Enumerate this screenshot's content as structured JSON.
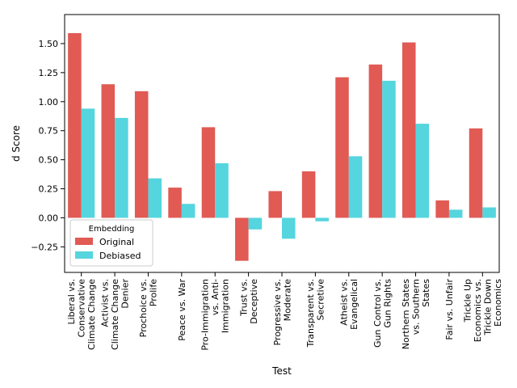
{
  "chart_data": {
    "type": "bar",
    "title": "",
    "xlabel": "Test",
    "ylabel": "d Score",
    "ylim": [
      -0.47,
      1.75
    ],
    "yticks": [
      -0.25,
      0.0,
      0.25,
      0.5,
      0.75,
      1.0,
      1.25,
      1.5
    ],
    "ytick_labels": [
      "−0.25",
      "0.00",
      "0.25",
      "0.50",
      "0.75",
      "1.00",
      "1.25",
      "1.50"
    ],
    "categories": [
      [
        "Liberal vs.",
        "Conservative",
        "Climate Change"
      ],
      [
        "Activist vs.",
        "Climate Change",
        "Denier"
      ],
      [
        "Prochoice vs.",
        "Prolife"
      ],
      [
        "Peace vs. War"
      ],
      [
        "Pro-Immigration",
        "vs. Anti-",
        "Immigration"
      ],
      [
        "Trust vs.",
        "Deceptive"
      ],
      [
        "Progressive vs.",
        "Moderate"
      ],
      [
        "Transparent vs.",
        "Secretive"
      ],
      [
        "Atheist vs.",
        "Evangelical"
      ],
      [
        "Gun Control vs.",
        "Gun Rights"
      ],
      [
        "Northern States",
        "vs. Southern",
        "States"
      ],
      [
        "Fair vs. Unfair"
      ],
      [
        "Trickle Up",
        "Economics vs.",
        "Trickle Down",
        "Economics"
      ]
    ],
    "legend": {
      "title": "Embedding",
      "placement": "lower-left"
    },
    "series": [
      {
        "name": "Original",
        "color": "#e15a54",
        "values": [
          1.59,
          1.15,
          1.09,
          0.26,
          0.78,
          -0.37,
          0.23,
          0.4,
          1.21,
          1.32,
          1.51,
          0.15,
          0.77
        ]
      },
      {
        "name": "Debiased",
        "color": "#55d5de",
        "values": [
          0.94,
          0.86,
          0.34,
          0.12,
          0.47,
          -0.1,
          -0.18,
          -0.03,
          0.53,
          1.18,
          0.81,
          0.07,
          0.09
        ]
      }
    ]
  }
}
